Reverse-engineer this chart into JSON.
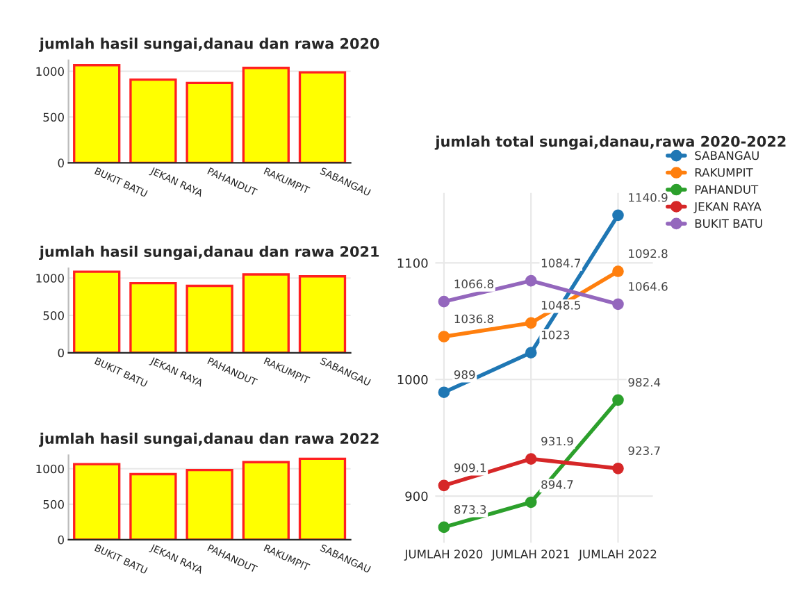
{
  "chart_data": [
    {
      "type": "bar",
      "title": "jumlah hasil sungai,danau dan rawa 2020",
      "categories": [
        "BUKIT BATU",
        "JEKAN RAYA",
        "PAHANDUT",
        "RAKUMPIT",
        "SABANGAU"
      ],
      "values": [
        1067,
        909,
        873,
        1037,
        989
      ],
      "color": "#ffff00",
      "ylim": [
        0,
        1120
      ],
      "yticks": [
        0,
        500,
        1000
      ],
      "grid": "y"
    },
    {
      "type": "bar",
      "title": "jumlah hasil sungai,danau dan rawa 2021",
      "categories": [
        "BUKIT BATU",
        "JEKAN RAYA",
        "PAHANDUT",
        "RAKUMPIT",
        "SABANGAU"
      ],
      "values": [
        1085,
        932,
        895,
        1049,
        1023
      ],
      "color": "#ffff00",
      "ylim": [
        0,
        1130
      ],
      "yticks": [
        0,
        500,
        1000
      ],
      "grid": "y"
    },
    {
      "type": "bar",
      "title": "jumlah hasil sungai,danau dan rawa 2022",
      "categories": [
        "BUKIT BATU",
        "JEKAN RAYA",
        "PAHANDUT",
        "RAKUMPIT",
        "SABANGAU"
      ],
      "values": [
        1065,
        924,
        982,
        1093,
        1141
      ],
      "color": "#ffff00",
      "ylim": [
        0,
        1190
      ],
      "yticks": [
        0,
        500,
        1000
      ],
      "grid": "y"
    },
    {
      "type": "line",
      "title": "jumlah total sungai,danau,rawa 2020-2022",
      "categories": [
        "JUMLAH 2020",
        "JUMLAH 2021",
        "JUMLAH 2022"
      ],
      "ylim": [
        860,
        1160
      ],
      "yticks": [
        900,
        1000,
        1100
      ],
      "grid": true,
      "legend": "top right",
      "marker": "circle",
      "line_style": "solid",
      "data_labels": true,
      "series": [
        {
          "name": "SABANGAU",
          "color": "#1f77b4",
          "values": [
            989,
            1023,
            1140.9
          ]
        },
        {
          "name": "RAKUMPIT",
          "color": "#ff7f0e",
          "values": [
            1036.8,
            1048.5,
            1092.8
          ]
        },
        {
          "name": "PAHANDUT",
          "color": "#2ca02c",
          "values": [
            873.3,
            894.7,
            982.4
          ]
        },
        {
          "name": "JEKAN RAYA",
          "color": "#d62728",
          "values": [
            909.1,
            931.9,
            923.7
          ]
        },
        {
          "name": "BUKIT BATU",
          "color": "#9467bd",
          "values": [
            1066.8,
            1084.7,
            1064.6
          ]
        }
      ]
    }
  ]
}
